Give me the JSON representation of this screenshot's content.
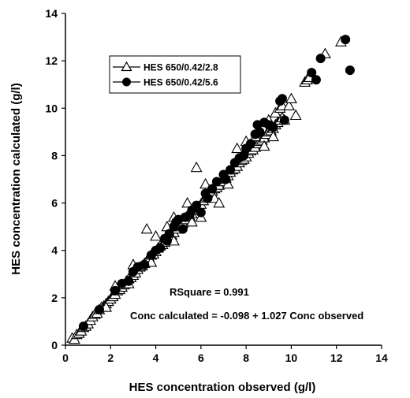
{
  "chart_data": {
    "type": "scatter",
    "title": "",
    "xlabel": "HES concentration observed (g/l)",
    "ylabel": "HES concentration calculated (g/l)",
    "xlim": [
      0,
      14
    ],
    "ylim": [
      0,
      14
    ],
    "xticks": [
      "0",
      "2",
      "4",
      "6",
      "8",
      "10",
      "12",
      "14"
    ],
    "yticks": [
      "0",
      "2",
      "4",
      "6",
      "8",
      "10",
      "12",
      "14"
    ],
    "grid": false,
    "legend_position": "top-left",
    "annotations": {
      "rsquare": "RSquare =  0.991",
      "equation": "Conc calculated = -0.098 + 1.027 Conc observed"
    },
    "series": [
      {
        "name": "HES 650/0.42/2.8",
        "marker": "open-triangle",
        "color": "#000000",
        "points": [
          [
            0.3,
            0.3
          ],
          [
            0.4,
            0.25
          ],
          [
            0.5,
            0.45
          ],
          [
            0.6,
            0.5
          ],
          [
            0.7,
            0.6
          ],
          [
            0.8,
            0.75
          ],
          [
            0.9,
            0.8
          ],
          [
            1.0,
            0.9
          ],
          [
            1.1,
            1.05
          ],
          [
            1.2,
            1.2
          ],
          [
            1.3,
            1.3
          ],
          [
            1.4,
            1.35
          ],
          [
            1.5,
            1.5
          ],
          [
            1.6,
            1.6
          ],
          [
            1.7,
            1.65
          ],
          [
            1.8,
            1.75
          ],
          [
            1.9,
            1.85
          ],
          [
            2.0,
            1.95
          ],
          [
            2.1,
            2.05
          ],
          [
            2.2,
            2.15
          ],
          [
            2.3,
            2.3
          ],
          [
            2.4,
            2.35
          ],
          [
            2.5,
            2.45
          ],
          [
            2.6,
            2.55
          ],
          [
            2.7,
            2.7
          ],
          [
            2.8,
            2.8
          ],
          [
            2.9,
            2.85
          ],
          [
            3.0,
            2.95
          ],
          [
            3.1,
            3.05
          ],
          [
            3.2,
            3.2
          ],
          [
            3.3,
            3.3
          ],
          [
            3.4,
            3.35
          ],
          [
            3.5,
            3.45
          ],
          [
            3.6,
            3.55
          ],
          [
            3.7,
            3.7
          ],
          [
            3.8,
            3.8
          ],
          [
            3.9,
            3.85
          ],
          [
            4.0,
            3.95
          ],
          [
            4.1,
            4.1
          ],
          [
            4.2,
            4.2
          ],
          [
            4.3,
            4.25
          ],
          [
            4.4,
            4.35
          ],
          [
            4.5,
            4.5
          ],
          [
            4.6,
            4.6
          ],
          [
            4.7,
            4.65
          ],
          [
            4.8,
            4.75
          ],
          [
            4.9,
            4.9
          ],
          [
            5.0,
            5.0
          ],
          [
            5.1,
            5.05
          ],
          [
            5.2,
            5.15
          ],
          [
            5.3,
            5.3
          ],
          [
            5.4,
            5.4
          ],
          [
            5.5,
            5.45
          ],
          [
            5.6,
            5.55
          ],
          [
            5.7,
            5.7
          ],
          [
            5.8,
            5.8
          ],
          [
            5.9,
            5.85
          ],
          [
            6.0,
            5.95
          ],
          [
            6.1,
            6.1
          ],
          [
            6.2,
            6.2
          ],
          [
            6.3,
            6.25
          ],
          [
            6.4,
            6.35
          ],
          [
            6.5,
            6.5
          ],
          [
            6.6,
            6.6
          ],
          [
            6.7,
            6.65
          ],
          [
            6.8,
            6.75
          ],
          [
            6.9,
            6.9
          ],
          [
            7.0,
            7.0
          ],
          [
            7.1,
            7.05
          ],
          [
            7.2,
            7.15
          ],
          [
            7.3,
            7.3
          ],
          [
            7.4,
            7.4
          ],
          [
            7.5,
            7.45
          ],
          [
            7.6,
            7.55
          ],
          [
            7.7,
            7.7
          ],
          [
            7.8,
            7.8
          ],
          [
            7.9,
            7.85
          ],
          [
            8.0,
            7.95
          ],
          [
            8.1,
            8.1
          ],
          [
            8.2,
            8.2
          ],
          [
            8.3,
            8.25
          ],
          [
            8.4,
            8.35
          ],
          [
            8.5,
            8.5
          ],
          [
            8.6,
            8.6
          ],
          [
            8.7,
            8.65
          ],
          [
            8.8,
            8.75
          ],
          [
            8.9,
            8.9
          ],
          [
            9.0,
            9.0
          ],
          [
            9.1,
            9.05
          ],
          [
            9.2,
            9.15
          ],
          [
            9.3,
            9.3
          ],
          [
            9.4,
            9.4
          ],
          [
            9.5,
            9.5
          ],
          [
            9.6,
            9.6
          ],
          [
            3.6,
            4.9
          ],
          [
            5.8,
            7.5
          ],
          [
            4.5,
            5.0
          ],
          [
            5.4,
            6.0
          ],
          [
            2.2,
            2.5
          ],
          [
            3.0,
            3.4
          ],
          [
            4.0,
            4.6
          ],
          [
            4.8,
            5.4
          ],
          [
            6.2,
            6.8
          ],
          [
            7.6,
            8.3
          ],
          [
            8.0,
            8.6
          ],
          [
            8.4,
            8.8
          ],
          [
            9.0,
            9.5
          ],
          [
            9.3,
            9.8
          ],
          [
            9.5,
            10.0
          ],
          [
            9.6,
            10.1
          ],
          [
            9.7,
            9.5
          ],
          [
            9.9,
            10.1
          ],
          [
            10.0,
            10.4
          ],
          [
            10.2,
            9.7
          ],
          [
            9.2,
            8.8
          ],
          [
            8.8,
            8.4
          ],
          [
            7.2,
            6.8
          ],
          [
            6.6,
            6.2
          ],
          [
            5.6,
            5.2
          ],
          [
            4.8,
            4.4
          ],
          [
            3.8,
            3.5
          ],
          [
            2.8,
            2.6
          ],
          [
            1.8,
            1.6
          ],
          [
            6.0,
            5.4
          ],
          [
            6.8,
            6.0
          ],
          [
            10.6,
            11.1
          ],
          [
            10.7,
            11.2
          ],
          [
            10.8,
            11.3
          ],
          [
            11.5,
            12.3
          ],
          [
            12.2,
            12.8
          ]
        ]
      },
      {
        "name": "HES 650/0.42/5.6",
        "marker": "filled-circle",
        "color": "#000000",
        "points": [
          [
            0.8,
            0.8
          ],
          [
            1.5,
            1.5
          ],
          [
            2.2,
            2.3
          ],
          [
            2.8,
            2.7
          ],
          [
            3.2,
            3.3
          ],
          [
            3.5,
            3.4
          ],
          [
            3.8,
            3.8
          ],
          [
            4.0,
            4.0
          ],
          [
            4.2,
            4.1
          ],
          [
            4.4,
            4.5
          ],
          [
            4.6,
            4.7
          ],
          [
            4.8,
            5.0
          ],
          [
            4.9,
            5.2
          ],
          [
            5.0,
            5.3
          ],
          [
            5.2,
            4.9
          ],
          [
            5.3,
            5.4
          ],
          [
            5.5,
            5.5
          ],
          [
            5.6,
            5.7
          ],
          [
            5.8,
            5.9
          ],
          [
            6.0,
            5.6
          ],
          [
            6.2,
            6.4
          ],
          [
            6.5,
            6.6
          ],
          [
            6.7,
            6.9
          ],
          [
            7.0,
            7.2
          ],
          [
            7.3,
            7.4
          ],
          [
            7.5,
            7.7
          ],
          [
            7.7,
            7.9
          ],
          [
            7.9,
            8.0
          ],
          [
            8.0,
            8.3
          ],
          [
            8.2,
            8.5
          ],
          [
            8.4,
            8.9
          ],
          [
            8.5,
            9.3
          ],
          [
            8.6,
            9.0
          ],
          [
            8.8,
            9.4
          ],
          [
            9.0,
            9.3
          ],
          [
            9.2,
            9.2
          ],
          [
            9.5,
            10.3
          ],
          [
            9.6,
            10.4
          ],
          [
            9.7,
            9.5
          ],
          [
            3.0,
            3.1
          ],
          [
            2.5,
            2.6
          ],
          [
            4.5,
            4.4
          ],
          [
            6.3,
            6.2
          ],
          [
            7.1,
            7.0
          ],
          [
            10.9,
            11.5
          ],
          [
            11.1,
            11.2
          ],
          [
            11.3,
            12.1
          ],
          [
            12.4,
            12.9
          ],
          [
            12.6,
            11.6
          ]
        ]
      }
    ]
  }
}
